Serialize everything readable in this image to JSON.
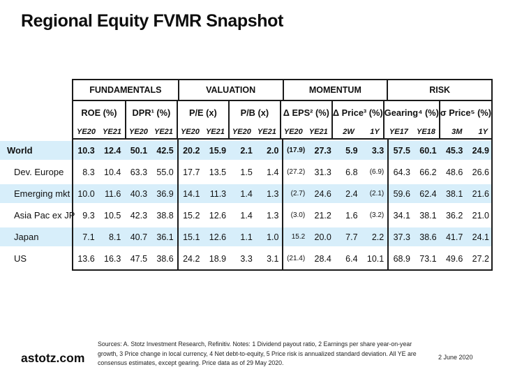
{
  "title": "Regional Equity FVMR Snapshot",
  "colors": {
    "highlight": "#d7eefa",
    "border": "#1a1a1a"
  },
  "table": {
    "header": {
      "groups": [
        {
          "label": "FUNDAMENTALS",
          "metrics": [
            {
              "name": "ROE (%)",
              "periods": [
                "YE20",
                "YE21"
              ]
            },
            {
              "name": "DPR¹ (%)",
              "periods": [
                "YE20",
                "YE21"
              ]
            }
          ]
        },
        {
          "label": "VALUATION",
          "metrics": [
            {
              "name": "P/E (x)",
              "periods": [
                "YE20",
                "YE21"
              ]
            },
            {
              "name": "P/B (x)",
              "periods": [
                "YE20",
                "YE21"
              ]
            }
          ]
        },
        {
          "label": "MOMENTUM",
          "metrics": [
            {
              "name": "Δ EPS² (%)",
              "periods": [
                "YE20",
                "YE21"
              ]
            },
            {
              "name": "Δ Price³ (%)",
              "periods": [
                "2W",
                "1Y"
              ]
            }
          ]
        },
        {
          "label": "RISK",
          "metrics": [
            {
              "name": "Gearing⁴ (%)",
              "periods": [
                "YE17",
                "YE18"
              ]
            },
            {
              "name": "σ Price⁵ (%)",
              "periods": [
                "3M",
                "1Y"
              ]
            }
          ]
        }
      ]
    },
    "rows": [
      {
        "label": "World",
        "bold": true,
        "highlight": true,
        "indent": false,
        "values": [
          "10.3",
          "12.4",
          "50.1",
          "42.5",
          "20.2",
          "15.9",
          "2.1",
          "2.0",
          "(17.9)",
          "27.3",
          "5.9",
          "3.3",
          "57.5",
          "60.1",
          "45.3",
          "24.9"
        ]
      },
      {
        "label": "Dev. Europe",
        "bold": false,
        "highlight": false,
        "indent": true,
        "values": [
          "8.3",
          "10.4",
          "63.3",
          "55.0",
          "17.7",
          "13.5",
          "1.5",
          "1.4",
          "(27.2)",
          "31.3",
          "6.8",
          "(6.9)",
          "64.3",
          "66.2",
          "48.6",
          "26.6"
        ]
      },
      {
        "label": "Emerging mkt",
        "bold": false,
        "highlight": true,
        "indent": true,
        "values": [
          "10.0",
          "11.6",
          "40.3",
          "36.9",
          "14.1",
          "11.3",
          "1.4",
          "1.3",
          "(2.7)",
          "24.6",
          "2.4",
          "(2.1)",
          "59.6",
          "62.4",
          "38.1",
          "21.6"
        ]
      },
      {
        "label": "Asia Pac ex JP",
        "bold": false,
        "highlight": false,
        "indent": true,
        "values": [
          "9.3",
          "10.5",
          "42.3",
          "38.8",
          "15.2",
          "12.6",
          "1.4",
          "1.3",
          "(3.0)",
          "21.2",
          "1.6",
          "(3.2)",
          "34.1",
          "38.1",
          "36.2",
          "21.0"
        ]
      },
      {
        "label": "Japan",
        "bold": false,
        "highlight": true,
        "indent": true,
        "values": [
          "7.1",
          "8.1",
          "40.7",
          "36.1",
          "15.1",
          "12.6",
          "1.1",
          "1.0",
          "15.2",
          "20.0",
          "7.7",
          "2.2",
          "37.3",
          "38.6",
          "41.7",
          "24.1"
        ]
      },
      {
        "label": "US",
        "bold": false,
        "highlight": false,
        "indent": true,
        "values": [
          "13.6",
          "16.3",
          "47.5",
          "38.6",
          "24.2",
          "18.9",
          "3.3",
          "3.1",
          "(21.4)",
          "28.4",
          "6.4",
          "10.1",
          "68.9",
          "73.1",
          "49.6",
          "27.2"
        ]
      }
    ]
  },
  "footer": {
    "brand": "astotz.com",
    "note": "Sources: A. Stotz Investment Research, Refinitiv. Notes: 1 Dividend payout ratio, 2 Earnings per share year-on-year growth, 3 Price change in local currency, 4 Net debt-to-equity, 5 Price risk is annualized standard deviation. All YE are consensus estimates, except gearing. Price data as of 29 May 2020.",
    "date": "2 June 2020"
  }
}
